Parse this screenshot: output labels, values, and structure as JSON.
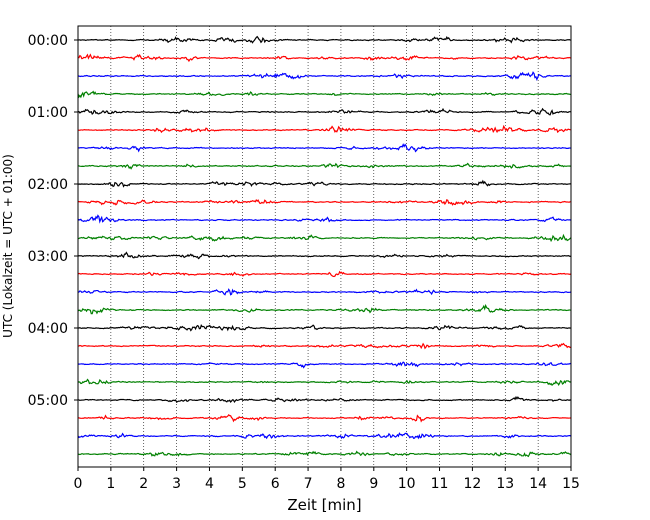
{
  "chart_data": {
    "type": "line",
    "title": "",
    "xlabel": "Zeit  [min]",
    "ylabel": "UTC (Lokalzeit = UTC + 01:00)",
    "xlim": [
      0,
      15
    ],
    "x_ticks": [
      "0",
      "1",
      "2",
      "3",
      "4",
      "5",
      "6",
      "7",
      "8",
      "9",
      "10",
      "11",
      "12",
      "13",
      "14",
      "15"
    ],
    "y_tick_labels": [
      "00:00",
      "01:00",
      "02:00",
      "03:00",
      "04:00",
      "05:00"
    ],
    "grid": "vertical dotted",
    "trace_colors": [
      "#000000",
      "#ff0000",
      "#0000ff",
      "#008000"
    ],
    "trace_start_times": [
      "00:00",
      "00:15",
      "00:30",
      "00:45",
      "01:00",
      "01:15",
      "01:30",
      "01:45",
      "02:00",
      "02:15",
      "02:30",
      "02:45",
      "03:00",
      "03:15",
      "03:30",
      "03:45",
      "04:00",
      "04:15",
      "04:30",
      "04:45",
      "05:00",
      "05:15",
      "05:30",
      "05:45"
    ],
    "trace_duration_min": 15
  }
}
